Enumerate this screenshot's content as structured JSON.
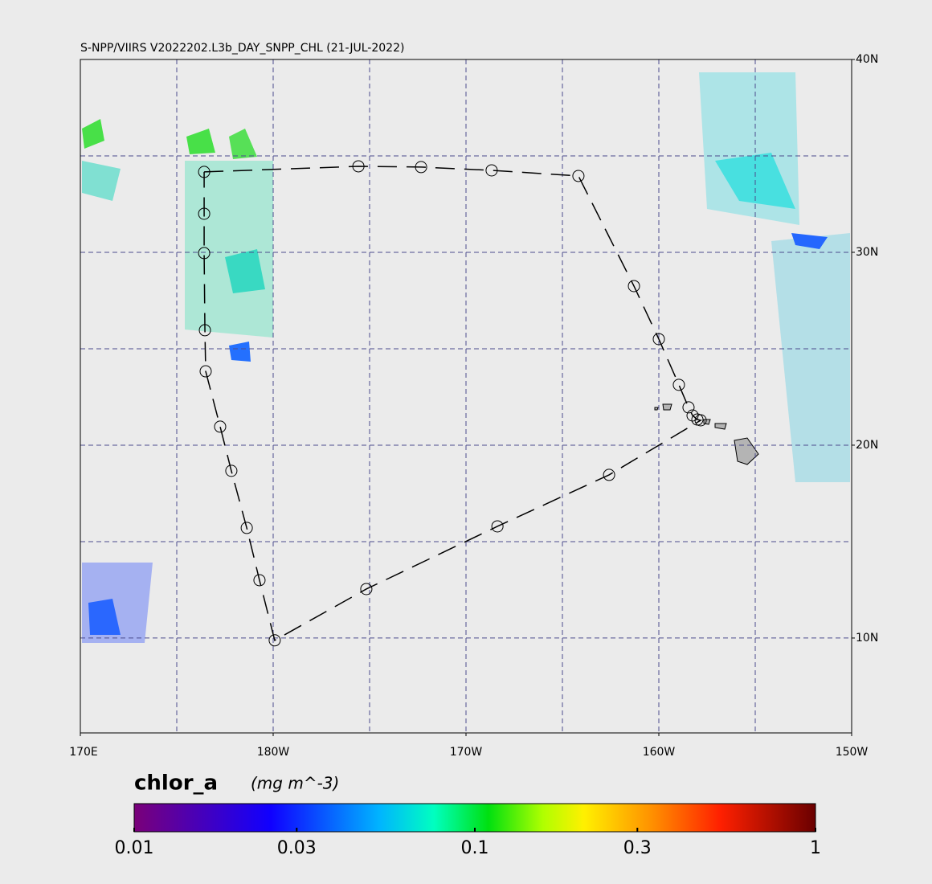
{
  "title": "S-NPP/VIIRS V2022202.L3b_DAY_SNPP_CHL (21-JUL-2022)",
  "map": {
    "xlim": [
      170,
      210
    ],
    "ylim": [
      5.08,
      40
    ],
    "xticks": [
      {
        "value": 170,
        "label": "170E"
      },
      {
        "value": 180,
        "label": "180W"
      },
      {
        "value": 190,
        "label": "170W"
      },
      {
        "value": 200,
        "label": "160W"
      },
      {
        "value": 210,
        "label": "150W"
      }
    ],
    "yticks": [
      {
        "value": 40,
        "label": "40N"
      },
      {
        "value": 30,
        "label": "30N"
      },
      {
        "value": 20,
        "label": "20N"
      },
      {
        "value": 10,
        "label": "10N"
      }
    ],
    "xgrid": [
      175,
      180,
      185,
      190,
      195,
      200,
      205
    ],
    "ygrid": [
      10,
      15,
      20,
      25,
      30,
      35
    ],
    "grid": true
  },
  "stations": {
    "lon": [
      176.42,
      184.42,
      187.67,
      191.33,
      195.83,
      198.71,
      200.0,
      201.04,
      201.54,
      201.75,
      202.0,
      202.17,
      197.42,
      191.63,
      184.83,
      180.08,
      179.29,
      178.63,
      177.83,
      177.25,
      176.5,
      176.46,
      176.42,
      176.42
    ],
    "lat": [
      34.17,
      34.46,
      34.42,
      34.25,
      33.96,
      28.25,
      25.5,
      23.13,
      21.96,
      21.54,
      21.33,
      21.29,
      18.46,
      15.79,
      12.54,
      9.88,
      13.0,
      15.71,
      18.67,
      20.96,
      23.83,
      25.96,
      29.96,
      32.0
    ]
  },
  "colorbar": {
    "label": "chlor_a",
    "units": "(mg m^-3)",
    "lim": [
      0.01,
      1
    ],
    "log": true,
    "ticks": [
      0.01,
      0.03,
      0.1,
      0.3,
      1
    ]
  }
}
